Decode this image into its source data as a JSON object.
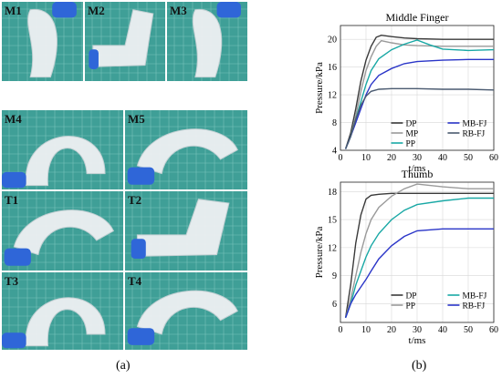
{
  "photos": [
    {
      "label": "M1",
      "kind": "finger"
    },
    {
      "label": "M2",
      "kind": "bent"
    },
    {
      "label": "M3",
      "kind": "finger"
    },
    {
      "label": "M4",
      "kind": "arch"
    },
    {
      "label": "M5",
      "kind": "curl"
    },
    {
      "label": "T1",
      "kind": "curl"
    },
    {
      "label": "T2",
      "kind": "bent"
    },
    {
      "label": "T3",
      "kind": "arch"
    },
    {
      "label": "T4",
      "kind": "curl"
    }
  ],
  "colors": {
    "mat": "#3f9f97",
    "grid": "#8fd0c8",
    "silicone": "#eef1f3",
    "glove": "#2f66d8"
  },
  "captions": {
    "a": "(a)",
    "b": "(b)"
  },
  "chart_data": [
    {
      "type": "line",
      "title": "Middle Finger",
      "xlabel": "t/ms",
      "ylabel": "Pressure/kPa",
      "xlim": [
        0,
        60
      ],
      "ylim": [
        4,
        22
      ],
      "xticks": [
        0,
        10,
        20,
        30,
        40,
        50,
        60
      ],
      "yticks": [
        4,
        8,
        12,
        16,
        20
      ],
      "grid": true,
      "legend_position": "bottom-right",
      "series": [
        {
          "name": "DP",
          "color": "#3a3a3a",
          "points": [
            [
              2,
              4.2
            ],
            [
              4,
              6.5
            ],
            [
              6,
              10
            ],
            [
              8,
              14
            ],
            [
              10,
              17
            ],
            [
              12,
              19
            ],
            [
              14,
              20.3
            ],
            [
              16,
              20.6
            ],
            [
              20,
              20.4
            ],
            [
              25,
              20.2
            ],
            [
              30,
              20.1
            ],
            [
              40,
              20.0
            ],
            [
              50,
              20.0
            ],
            [
              60,
              20.0
            ]
          ]
        },
        {
          "name": "MP",
          "color": "#9a9a9a",
          "points": [
            [
              2,
              4.2
            ],
            [
              4,
              6
            ],
            [
              6,
              9
            ],
            [
              8,
              12.5
            ],
            [
              10,
              15.5
            ],
            [
              12,
              17.5
            ],
            [
              14,
              19
            ],
            [
              16,
              19.8
            ],
            [
              20,
              19.5
            ],
            [
              25,
              19.2
            ],
            [
              30,
              19.1
            ],
            [
              40,
              19.0
            ],
            [
              50,
              19.0
            ],
            [
              60,
              19.0
            ]
          ]
        },
        {
          "name": "PP",
          "color": "#19a8a5",
          "points": [
            [
              2,
              4.2
            ],
            [
              4,
              6
            ],
            [
              6,
              8.5
            ],
            [
              8,
              11
            ],
            [
              10,
              13.5
            ],
            [
              12,
              15.5
            ],
            [
              15,
              17.2
            ],
            [
              20,
              18.5
            ],
            [
              25,
              19.3
            ],
            [
              30,
              19.9
            ],
            [
              35,
              19.2
            ],
            [
              40,
              18.6
            ],
            [
              50,
              18.4
            ],
            [
              60,
              18.5
            ]
          ]
        },
        {
          "name": "MB-FJ",
          "color": "#2a35c8",
          "points": [
            [
              2,
              4.2
            ],
            [
              4,
              6
            ],
            [
              6,
              8
            ],
            [
              8,
              10
            ],
            [
              10,
              12
            ],
            [
              12,
              13.5
            ],
            [
              15,
              14.8
            ],
            [
              20,
              15.8
            ],
            [
              25,
              16.5
            ],
            [
              30,
              16.8
            ],
            [
              40,
              17.0
            ],
            [
              50,
              17.1
            ],
            [
              60,
              17.1
            ]
          ]
        },
        {
          "name": "RB-FJ",
          "color": "#4a5a70",
          "points": [
            [
              2,
              4.2
            ],
            [
              4,
              6
            ],
            [
              6,
              8.5
            ],
            [
              8,
              10.5
            ],
            [
              10,
              11.8
            ],
            [
              12,
              12.5
            ],
            [
              15,
              12.8
            ],
            [
              20,
              12.9
            ],
            [
              30,
              12.9
            ],
            [
              40,
              12.8
            ],
            [
              50,
              12.8
            ],
            [
              60,
              12.7
            ]
          ]
        }
      ]
    },
    {
      "type": "line",
      "title": "Thumb",
      "xlabel": "t/ms",
      "ylabel": "Pressure/kPa",
      "xlim": [
        0,
        60
      ],
      "ylim": [
        4,
        19
      ],
      "xticks": [
        0,
        10,
        20,
        30,
        40,
        50,
        60
      ],
      "yticks": [
        6,
        9,
        12,
        15,
        18
      ],
      "grid": true,
      "legend_position": "bottom-right",
      "series": [
        {
          "name": "DP",
          "color": "#3a3a3a",
          "points": [
            [
              2,
              4.5
            ],
            [
              4,
              8
            ],
            [
              6,
              12.5
            ],
            [
              8,
              15.5
            ],
            [
              10,
              17.2
            ],
            [
              12,
              17.6
            ],
            [
              15,
              17.7
            ],
            [
              20,
              17.8
            ],
            [
              30,
              17.8
            ],
            [
              40,
              17.8
            ],
            [
              50,
              17.8
            ],
            [
              60,
              17.8
            ]
          ]
        },
        {
          "name": "PP",
          "color": "#9a9a9a",
          "points": [
            [
              2,
              4.5
            ],
            [
              4,
              6.5
            ],
            [
              6,
              9
            ],
            [
              8,
              11.5
            ],
            [
              10,
              13.5
            ],
            [
              12,
              15
            ],
            [
              15,
              16.3
            ],
            [
              20,
              17.5
            ],
            [
              25,
              18.3
            ],
            [
              30,
              18.8
            ],
            [
              40,
              18.5
            ],
            [
              50,
              18.3
            ],
            [
              60,
              18.3
            ]
          ]
        },
        {
          "name": "MB-FJ",
          "color": "#19a8a5",
          "points": [
            [
              2,
              4.5
            ],
            [
              4,
              6
            ],
            [
              6,
              8
            ],
            [
              8,
              9.5
            ],
            [
              10,
              11
            ],
            [
              12,
              12.2
            ],
            [
              15,
              13.5
            ],
            [
              20,
              15
            ],
            [
              25,
              16
            ],
            [
              30,
              16.6
            ],
            [
              40,
              17.0
            ],
            [
              50,
              17.3
            ],
            [
              60,
              17.3
            ]
          ]
        },
        {
          "name": "RB-FJ",
          "color": "#2a35c8",
          "points": [
            [
              2,
              4.5
            ],
            [
              4,
              6
            ],
            [
              6,
              7
            ],
            [
              8,
              7.8
            ],
            [
              10,
              8.6
            ],
            [
              12,
              9.5
            ],
            [
              15,
              10.8
            ],
            [
              20,
              12.2
            ],
            [
              25,
              13.2
            ],
            [
              30,
              13.8
            ],
            [
              40,
              14.0
            ],
            [
              50,
              14.0
            ],
            [
              60,
              14.0
            ]
          ]
        }
      ]
    }
  ]
}
